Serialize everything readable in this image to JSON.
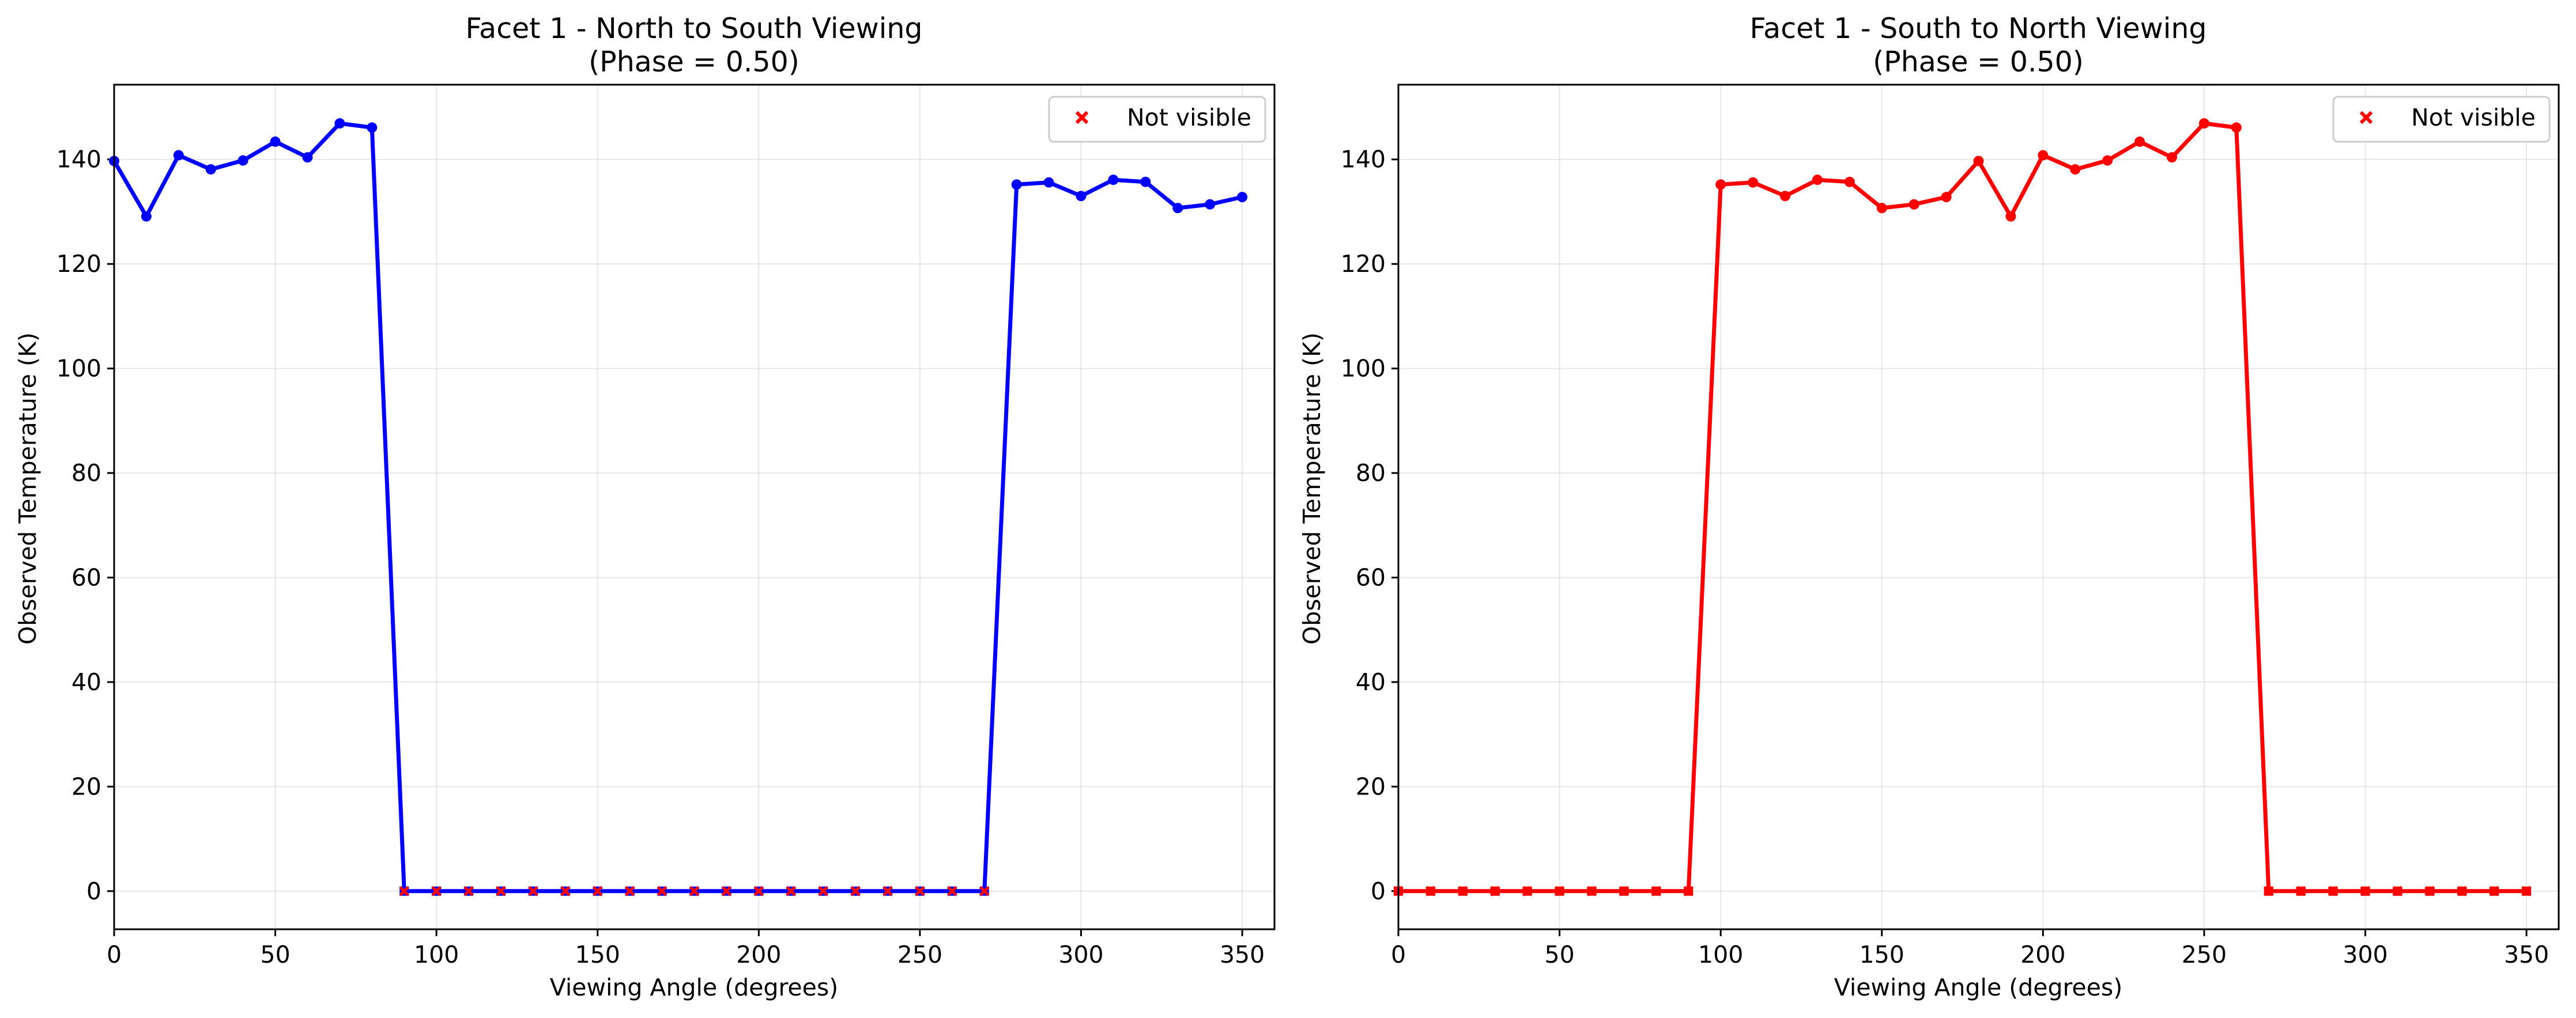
{
  "chart_data": [
    {
      "type": "line",
      "title_line1": "Facet 1 - North to South Viewing",
      "title_line2": "(Phase = 0.50)",
      "xlabel": "Viewing Angle (degrees)",
      "ylabel": "Observed Temperature (K)",
      "xlim": [
        0,
        360
      ],
      "ylim": [
        -7.3,
        154.3
      ],
      "xticks": [
        0,
        50,
        100,
        150,
        200,
        250,
        300,
        350
      ],
      "yticks": [
        0,
        20,
        40,
        60,
        80,
        100,
        120,
        140
      ],
      "grid": true,
      "legend": {
        "position": "top-right",
        "label": "Not visible",
        "marker": "x",
        "color": "#ff0000"
      },
      "series": [
        {
          "color": "#0000ff",
          "x": [
            0,
            10,
            20,
            30,
            40,
            50,
            60,
            70,
            80,
            90,
            100,
            110,
            120,
            130,
            140,
            150,
            160,
            170,
            180,
            190,
            200,
            210,
            220,
            230,
            240,
            250,
            260,
            270,
            280,
            290,
            300,
            310,
            320,
            330,
            340,
            350
          ],
          "y": [
            139.7,
            129.1,
            140.8,
            138.1,
            139.8,
            143.4,
            140.4,
            146.9,
            146.1,
            0,
            0,
            0,
            0,
            0,
            0,
            0,
            0,
            0,
            0,
            0,
            0,
            0,
            0,
            0,
            0,
            0,
            0,
            0,
            135.2,
            135.6,
            133.0,
            136.1,
            135.7,
            130.7,
            131.4,
            132.8
          ],
          "visible": [
            true,
            true,
            true,
            true,
            true,
            true,
            true,
            true,
            true,
            false,
            false,
            false,
            false,
            false,
            false,
            false,
            false,
            false,
            false,
            false,
            false,
            false,
            false,
            false,
            false,
            false,
            false,
            false,
            true,
            true,
            true,
            true,
            true,
            true,
            true,
            true
          ]
        }
      ]
    },
    {
      "type": "line",
      "title_line1": "Facet 1 - South to North Viewing",
      "title_line2": "(Phase = 0.50)",
      "xlabel": "Viewing Angle (degrees)",
      "ylabel": "Observed Temperature (K)",
      "xlim": [
        0,
        360
      ],
      "ylim": [
        -7.3,
        154.3
      ],
      "xticks": [
        0,
        50,
        100,
        150,
        200,
        250,
        300,
        350
      ],
      "yticks": [
        0,
        20,
        40,
        60,
        80,
        100,
        120,
        140
      ],
      "grid": true,
      "legend": {
        "position": "top-right",
        "label": "Not visible",
        "marker": "x",
        "color": "#ff0000"
      },
      "series": [
        {
          "color": "#ff0000",
          "x": [
            0,
            10,
            20,
            30,
            40,
            50,
            60,
            70,
            80,
            90,
            100,
            110,
            120,
            130,
            140,
            150,
            160,
            170,
            180,
            190,
            200,
            210,
            220,
            230,
            240,
            250,
            260,
            270,
            280,
            290,
            300,
            310,
            320,
            330,
            340,
            350
          ],
          "y": [
            0,
            0,
            0,
            0,
            0,
            0,
            0,
            0,
            0,
            0,
            135.2,
            135.6,
            133.0,
            136.1,
            135.7,
            130.7,
            131.4,
            132.8,
            139.7,
            129.1,
            140.8,
            138.1,
            139.8,
            143.4,
            140.4,
            146.9,
            146.1,
            0,
            0,
            0,
            0,
            0,
            0,
            0,
            0,
            0
          ],
          "visible": [
            false,
            false,
            false,
            false,
            false,
            false,
            false,
            false,
            false,
            false,
            true,
            true,
            true,
            true,
            true,
            true,
            true,
            true,
            true,
            true,
            true,
            true,
            true,
            true,
            true,
            true,
            true,
            false,
            false,
            false,
            false,
            false,
            false,
            false,
            false,
            false
          ]
        }
      ]
    }
  ]
}
